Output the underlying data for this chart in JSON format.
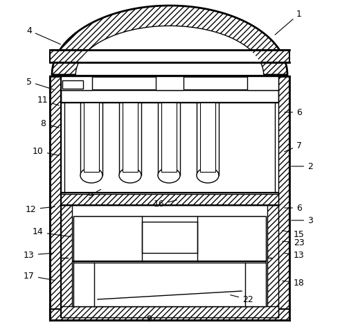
{
  "bg_color": "#ffffff",
  "line_color": "#000000",
  "figsize": [
    4.91,
    4.82
  ],
  "dpi": 100,
  "labels": [
    [
      "1",
      432,
      20,
      395,
      52
    ],
    [
      "2",
      448,
      240,
      418,
      240
    ],
    [
      "3",
      448,
      318,
      418,
      318
    ],
    [
      "4",
      42,
      44,
      90,
      65
    ],
    [
      "5",
      42,
      118,
      80,
      130
    ],
    [
      "6",
      432,
      162,
      408,
      162
    ],
    [
      "6",
      432,
      300,
      408,
      300
    ],
    [
      "7",
      432,
      210,
      408,
      220
    ],
    [
      "8",
      62,
      178,
      88,
      185
    ],
    [
      "9",
      130,
      282,
      148,
      272
    ],
    [
      "9",
      215,
      460,
      215,
      453
    ],
    [
      "10",
      55,
      218,
      88,
      225
    ],
    [
      "11",
      62,
      145,
      88,
      153
    ],
    [
      "12",
      45,
      302,
      82,
      298
    ],
    [
      "13",
      432,
      368,
      408,
      365
    ],
    [
      "13",
      42,
      368,
      80,
      365
    ],
    [
      "14",
      55,
      335,
      105,
      342
    ],
    [
      "15",
      432,
      338,
      405,
      332
    ],
    [
      "16",
      230,
      295,
      258,
      288
    ],
    [
      "17",
      42,
      398,
      82,
      405
    ],
    [
      "18",
      432,
      408,
      405,
      405
    ],
    [
      "22",
      358,
      432,
      330,
      425
    ],
    [
      "23",
      432,
      350,
      405,
      348
    ]
  ]
}
